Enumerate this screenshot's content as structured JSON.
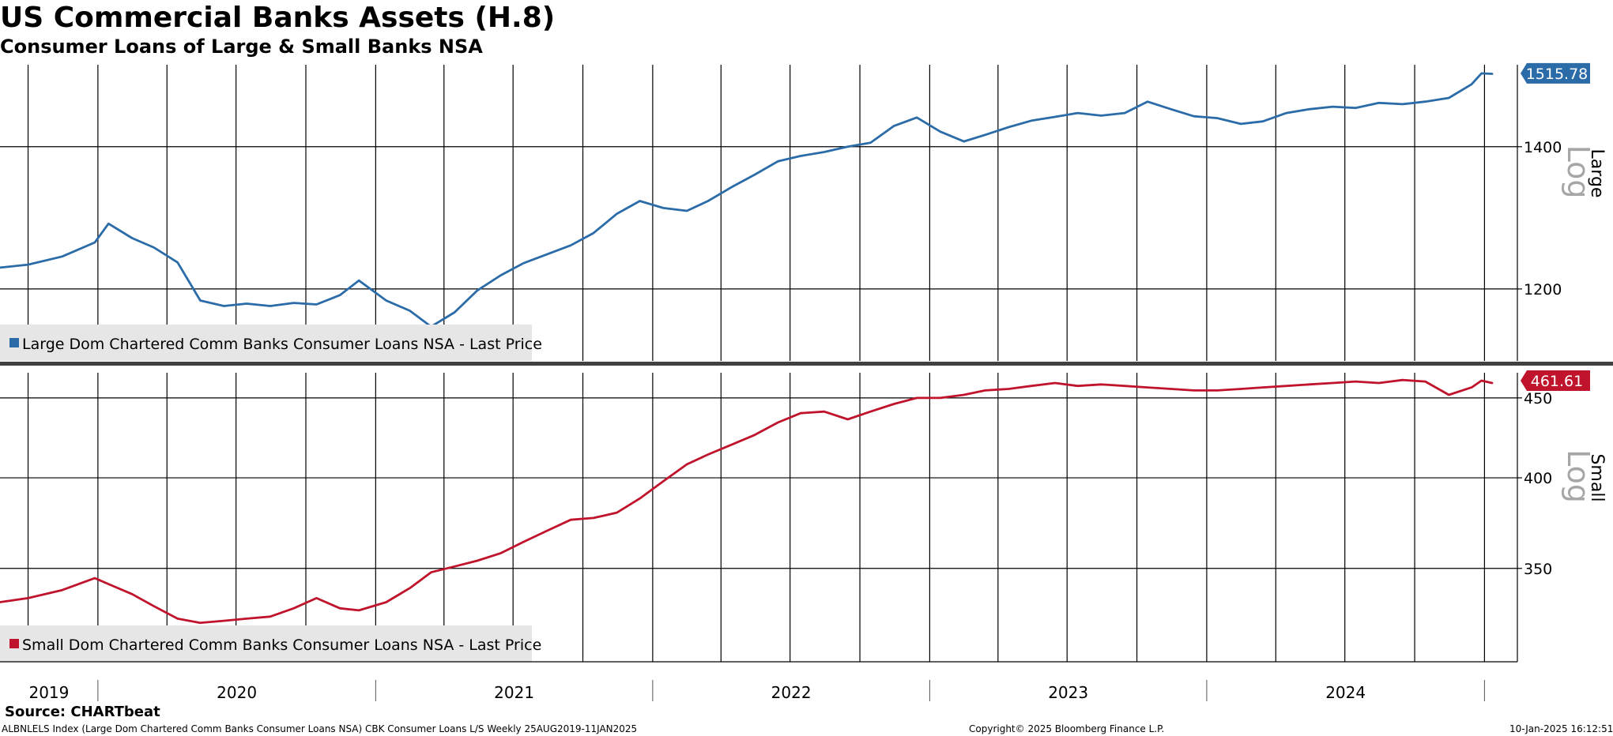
{
  "title": "US Commercial Banks Assets (H.8)",
  "subtitle": "Consumer Loans of Large & Small Banks NSA",
  "source": "Source: CHARTbeat",
  "footer": {
    "left": "ALBNLELS Index (Large Dom Chartered Comm Banks Consumer Loans NSA) CBK Consumer Loans L/S  Weekly 25AUG2019-11JAN2025",
    "center": "Copyright© 2025 Bloomberg Finance L.P.",
    "right": "10-Jan-2025 16:12:51"
  },
  "colors": {
    "large": "#2b6ca8",
    "small": "#c0142c",
    "legend_bg": "#e6e6e6",
    "scale_note": "#a6a6a6"
  },
  "chart_data": [
    {
      "type": "line",
      "panel": "Large",
      "axis_label": "Large",
      "scale_note": "Log",
      "log_scale": true,
      "ylim": [
        1110,
        1530
      ],
      "yticks": [
        1200,
        1400
      ],
      "last_value_label": "1515.78",
      "legend_placement": "bottom-left",
      "grid": true,
      "x_range": [
        "2019-08-25",
        "2025-01-11"
      ],
      "series": [
        {
          "name": "Large Dom Chartered Comm Banks Consumer Loans NSA - Last Price",
          "color": "#2b6ca8",
          "x": [
            "2019-08-25",
            "2019-10-01",
            "2019-11-15",
            "2019-12-28",
            "2020-01-15",
            "2020-02-15",
            "2020-03-15",
            "2020-04-15",
            "2020-05-15",
            "2020-06-15",
            "2020-07-15",
            "2020-08-15",
            "2020-09-15",
            "2020-10-15",
            "2020-11-15",
            "2020-12-10",
            "2021-01-15",
            "2021-02-15",
            "2021-03-15",
            "2021-04-15",
            "2021-05-15",
            "2021-06-15",
            "2021-07-15",
            "2021-08-15",
            "2021-09-15",
            "2021-10-15",
            "2021-11-15",
            "2021-12-15",
            "2022-01-15",
            "2022-02-15",
            "2022-03-15",
            "2022-04-15",
            "2022-05-15",
            "2022-06-15",
            "2022-07-15",
            "2022-08-15",
            "2022-09-15",
            "2022-10-15",
            "2022-11-15",
            "2022-12-15",
            "2023-01-15",
            "2023-02-15",
            "2023-03-15",
            "2023-04-15",
            "2023-05-15",
            "2023-06-15",
            "2023-07-15",
            "2023-08-15",
            "2023-09-15",
            "2023-10-15",
            "2023-11-15",
            "2023-12-15",
            "2024-01-15",
            "2024-02-15",
            "2024-03-15",
            "2024-04-15",
            "2024-05-15",
            "2024-06-15",
            "2024-07-15",
            "2024-08-15",
            "2024-09-15",
            "2024-10-15",
            "2024-11-15",
            "2024-12-15",
            "2024-12-28",
            "2025-01-11"
          ],
          "values": [
            1228,
            1232,
            1243,
            1262,
            1288,
            1268,
            1255,
            1235,
            1185,
            1178,
            1181,
            1178,
            1182,
            1180,
            1192,
            1211,
            1185,
            1172,
            1152,
            1170,
            1198,
            1218,
            1234,
            1246,
            1258,
            1275,
            1302,
            1320,
            1310,
            1306,
            1320,
            1340,
            1358,
            1378,
            1386,
            1392,
            1400,
            1406,
            1432,
            1445,
            1423,
            1408,
            1418,
            1430,
            1440,
            1446,
            1452,
            1448,
            1452,
            1470,
            1458,
            1447,
            1444,
            1435,
            1439,
            1452,
            1458,
            1462,
            1460,
            1468,
            1466,
            1470,
            1476,
            1498,
            1515.78,
            1515
          ]
        }
      ]
    },
    {
      "type": "line",
      "panel": "Small",
      "axis_label": "Small",
      "scale_note": "Log",
      "log_scale": true,
      "ylim": [
        305,
        467
      ],
      "yticks": [
        350,
        400,
        450
      ],
      "last_value_label": "461.61",
      "legend_placement": "bottom-left",
      "grid": true,
      "x_range": [
        "2019-08-25",
        "2025-01-11"
      ],
      "series": [
        {
          "name": "Small Dom Chartered Comm Banks Consumer Loans NSA - Last Price",
          "color": "#c0142c",
          "x": [
            "2019-08-25",
            "2019-10-01",
            "2019-11-15",
            "2019-12-28",
            "2020-01-15",
            "2020-02-15",
            "2020-03-15",
            "2020-04-15",
            "2020-05-15",
            "2020-06-15",
            "2020-07-15",
            "2020-08-15",
            "2020-09-15",
            "2020-10-15",
            "2020-11-15",
            "2020-12-10",
            "2021-01-15",
            "2021-02-15",
            "2021-03-15",
            "2021-04-15",
            "2021-05-15",
            "2021-06-15",
            "2021-07-15",
            "2021-08-15",
            "2021-09-15",
            "2021-10-15",
            "2021-11-15",
            "2021-12-15",
            "2022-01-15",
            "2022-02-15",
            "2022-03-15",
            "2022-04-15",
            "2022-05-15",
            "2022-06-15",
            "2022-07-15",
            "2022-08-15",
            "2022-09-15",
            "2022-10-15",
            "2022-11-15",
            "2022-12-15",
            "2023-01-15",
            "2023-02-15",
            "2023-03-15",
            "2023-04-15",
            "2023-05-15",
            "2023-06-15",
            "2023-07-15",
            "2023-08-15",
            "2023-09-15",
            "2023-10-15",
            "2023-11-15",
            "2023-12-15",
            "2024-01-15",
            "2024-02-15",
            "2024-03-15",
            "2024-04-15",
            "2024-05-15",
            "2024-06-15",
            "2024-07-15",
            "2024-08-15",
            "2024-09-15",
            "2024-10-15",
            "2024-11-15",
            "2024-12-15",
            "2024-12-28",
            "2025-01-11"
          ],
          "values": [
            333,
            335,
            339,
            345,
            342,
            337,
            331,
            325,
            323,
            324,
            325,
            326,
            330,
            335,
            330,
            329,
            333,
            340,
            348,
            351,
            354,
            358,
            364,
            370,
            376,
            377,
            380,
            388,
            398,
            408,
            414,
            420,
            426,
            434,
            440,
            441,
            436,
            441,
            446,
            450,
            450,
            452,
            455,
            456,
            458,
            460,
            458,
            459,
            458,
            457,
            456,
            455,
            455,
            456,
            457,
            458,
            459,
            460,
            461,
            460,
            462,
            461,
            452,
            457,
            461.61,
            460
          ]
        }
      ]
    }
  ],
  "x_axis": {
    "year_labels": [
      "2019",
      "2020",
      "2021",
      "2022",
      "2023",
      "2024"
    ]
  }
}
